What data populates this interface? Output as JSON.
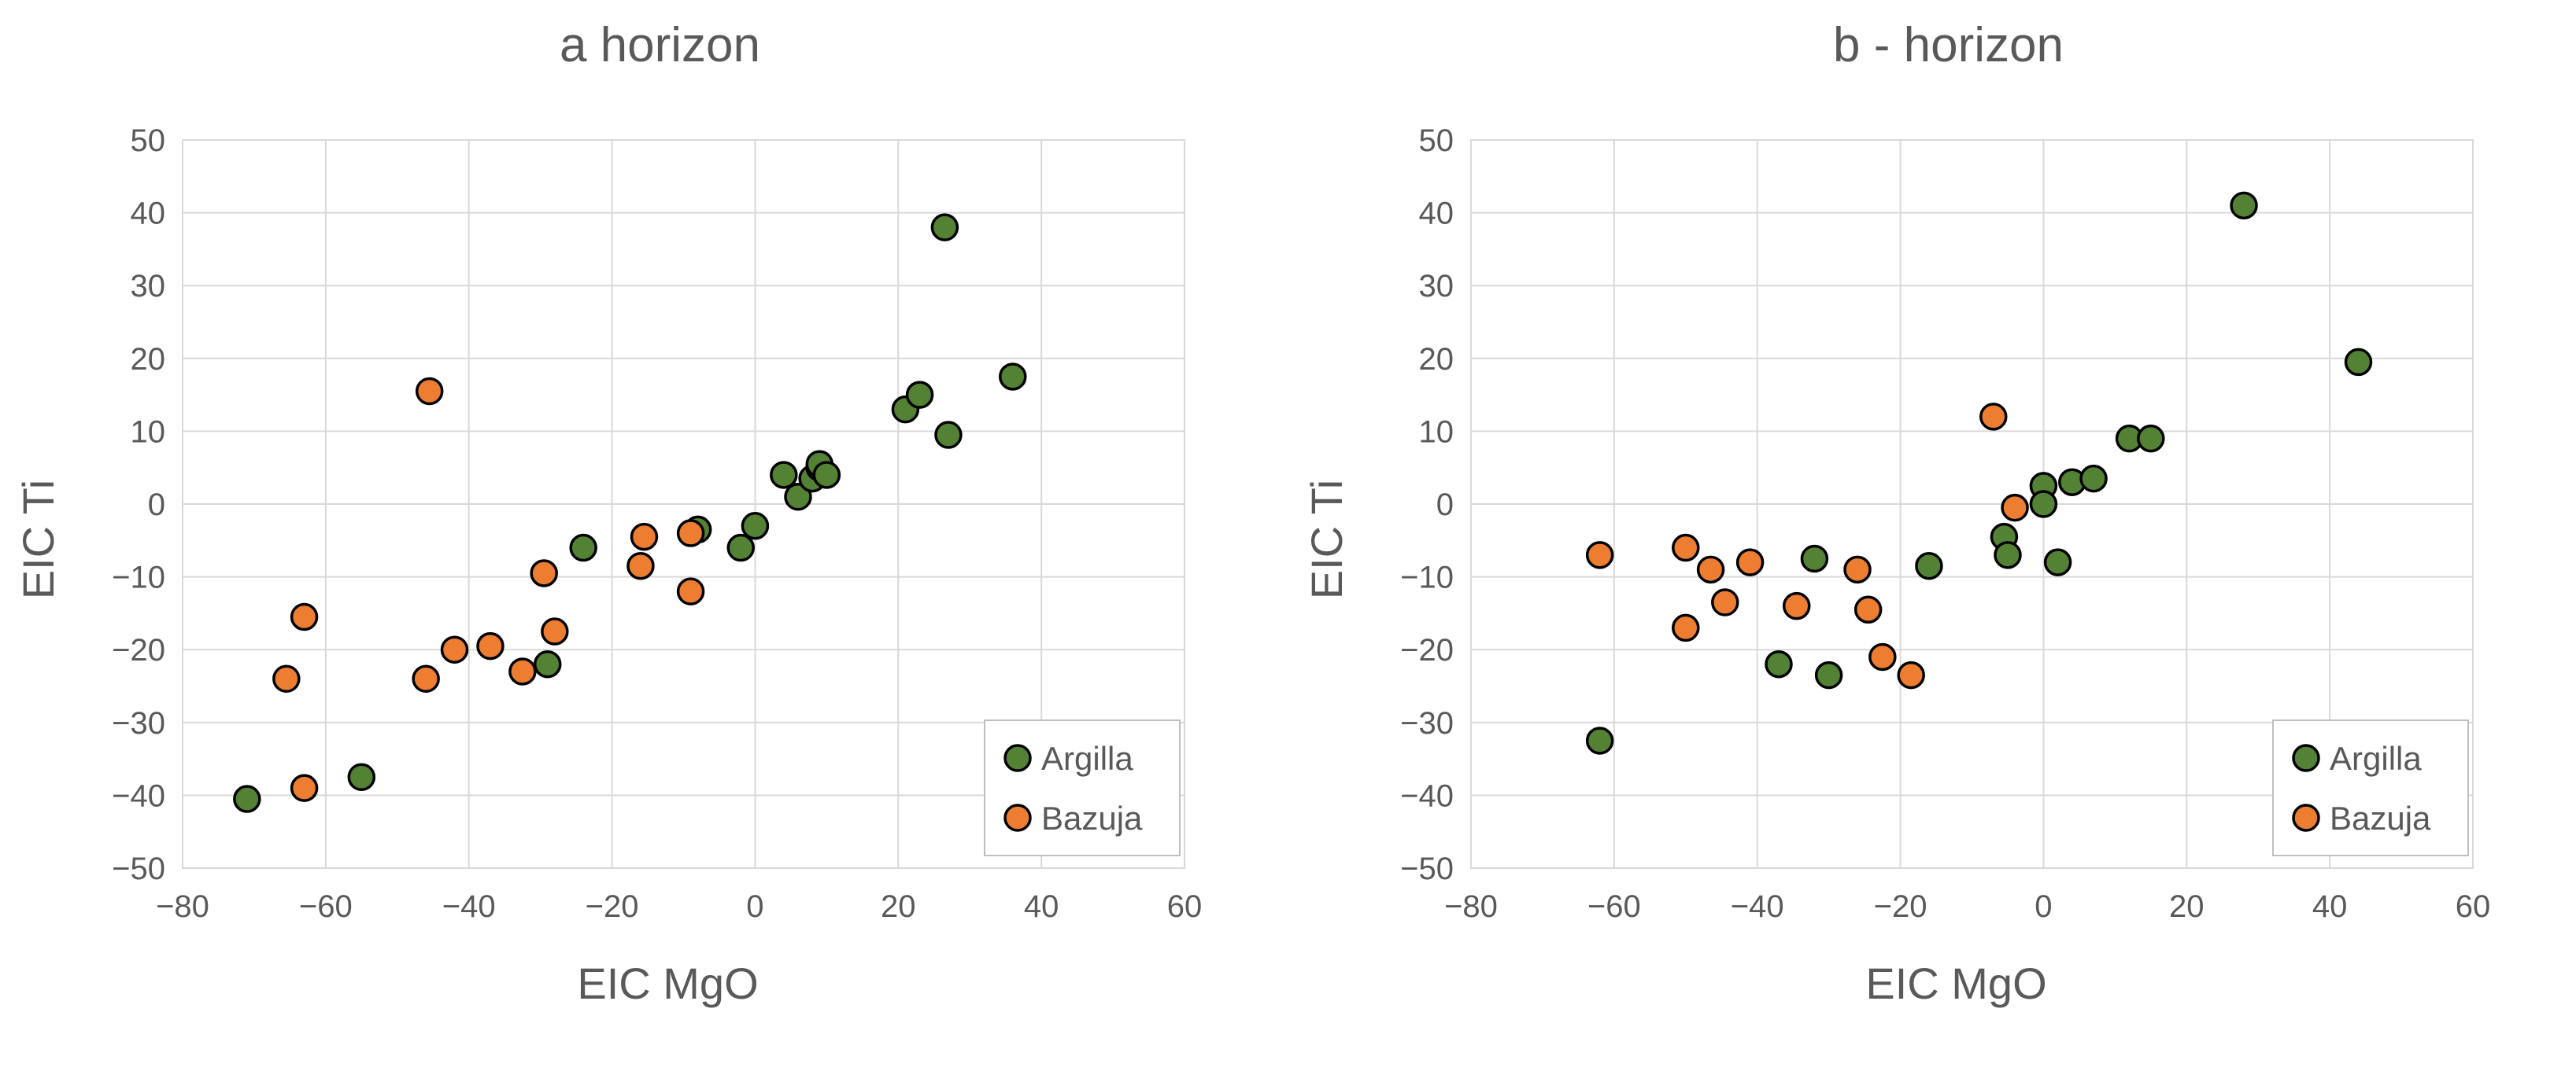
{
  "chart_data": [
    {
      "type": "scatter",
      "title": "a horizon",
      "xlabel": "EIC MgO",
      "ylabel": "EIC Ti",
      "xlim": [
        -80,
        60
      ],
      "ylim": [
        -50,
        50
      ],
      "xticks": [
        -80,
        -60,
        -40,
        -20,
        0,
        20,
        40,
        60
      ],
      "yticks": [
        -50,
        -40,
        -30,
        -20,
        -10,
        0,
        10,
        20,
        30,
        40,
        50
      ],
      "xtick_labels": [
        "−80",
        "−60",
        "−40",
        "−20",
        "0",
        "20",
        "40",
        "60"
      ],
      "ytick_labels": [
        "−50",
        "−40",
        "−30",
        "−20",
        "−10",
        "0",
        "10",
        "20",
        "30",
        "40",
        "50"
      ],
      "legend_position": "bottom-right",
      "series": [
        {
          "name": "Argilla",
          "color": "#548235",
          "points": [
            [
              -71,
              -40.5
            ],
            [
              -55,
              -37.5
            ],
            [
              -29,
              -22
            ],
            [
              -24,
              -6
            ],
            [
              -8,
              -3.5
            ],
            [
              -2,
              -6
            ],
            [
              0,
              -3
            ],
            [
              4,
              4
            ],
            [
              6,
              1
            ],
            [
              8,
              3.5
            ],
            [
              9,
              5
            ],
            [
              9,
              5.5
            ],
            [
              10,
              4
            ],
            [
              21,
              13
            ],
            [
              23,
              15
            ],
            [
              26.5,
              38
            ],
            [
              27,
              9.5
            ],
            [
              36,
              17.5
            ]
          ]
        },
        {
          "name": "Bazuja",
          "color": "#ED7D31",
          "points": [
            [
              -65.5,
              -24
            ],
            [
              -63,
              -15.5
            ],
            [
              -63,
              -39
            ],
            [
              -46,
              -24
            ],
            [
              -45.5,
              15.5
            ],
            [
              -42,
              -20
            ],
            [
              -37,
              -19.5
            ],
            [
              -32.5,
              -23
            ],
            [
              -29.5,
              -9.5
            ],
            [
              -28,
              -17.5
            ],
            [
              -16,
              -8.5
            ],
            [
              -15.5,
              -4.5
            ],
            [
              -9,
              -12
            ],
            [
              -9,
              -4
            ]
          ]
        }
      ]
    },
    {
      "type": "scatter",
      "title": "b - horizon",
      "xlabel": "EIC MgO",
      "ylabel": "EIC Ti",
      "xlim": [
        -80,
        60
      ],
      "ylim": [
        -50,
        50
      ],
      "xticks": [
        -80,
        -60,
        -40,
        -20,
        0,
        20,
        40,
        60
      ],
      "yticks": [
        -50,
        -40,
        -30,
        -20,
        -10,
        0,
        10,
        20,
        30,
        40,
        50
      ],
      "xtick_labels": [
        "−80",
        "−60",
        "−40",
        "−20",
        "0",
        "20",
        "40",
        "60"
      ],
      "ytick_labels": [
        "−50",
        "−40",
        "−30",
        "−20",
        "−10",
        "0",
        "10",
        "20",
        "30",
        "40",
        "50"
      ],
      "legend_position": "bottom-right",
      "series": [
        {
          "name": "Argilla",
          "color": "#548235",
          "points": [
            [
              -62,
              -32.5
            ],
            [
              -37,
              -22
            ],
            [
              -32,
              -7.5
            ],
            [
              -30,
              -23.5
            ],
            [
              -16,
              -8.5
            ],
            [
              -5.5,
              -4.5
            ],
            [
              -5,
              -7
            ],
            [
              0,
              2.5
            ],
            [
              0,
              0
            ],
            [
              2,
              -8
            ],
            [
              4,
              3
            ],
            [
              7,
              3.5
            ],
            [
              12,
              9
            ],
            [
              15,
              9
            ],
            [
              28,
              41
            ],
            [
              44,
              19.5
            ]
          ]
        },
        {
          "name": "Bazuja",
          "color": "#ED7D31",
          "points": [
            [
              -62,
              -7
            ],
            [
              -50,
              -6
            ],
            [
              -50,
              -17
            ],
            [
              -46.5,
              -9
            ],
            [
              -44.5,
              -13.5
            ],
            [
              -41,
              -8
            ],
            [
              -34.5,
              -14
            ],
            [
              -26,
              -9
            ],
            [
              -24.5,
              -14.5
            ],
            [
              -22.5,
              -21
            ],
            [
              -18.5,
              -23.5
            ],
            [
              -7,
              12
            ],
            [
              -4,
              -0.5
            ]
          ]
        }
      ]
    }
  ]
}
